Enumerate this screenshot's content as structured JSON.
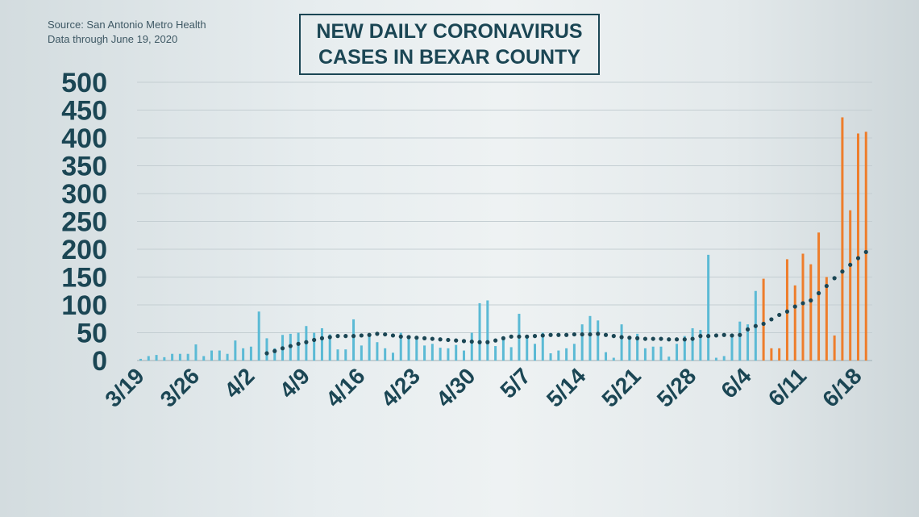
{
  "source": {
    "line1": "Source: San Antonio Metro Health",
    "line2": "Data through June 19, 2020"
  },
  "title": {
    "line1": "NEW DAILY CORONAVIRUS",
    "line2": "CASES IN BEXAR COUNTY"
  },
  "colors": {
    "bar_early": "#5bbad5",
    "bar_recent": "#ee7d2b",
    "average_dots": "#1b4654",
    "axis_text": "#1b4654",
    "grid": "#c4ced2"
  },
  "chart_data": {
    "type": "bar",
    "title": "NEW DAILY CORONAVIRUS CASES IN BEXAR COUNTY",
    "xlabel": "",
    "ylabel": "",
    "ylim": [
      0,
      500
    ],
    "yticks": [
      0,
      50,
      100,
      150,
      200,
      250,
      300,
      350,
      400,
      450,
      500
    ],
    "grid": true,
    "xtick_labels": [
      {
        "date": "3/19",
        "index": 0
      },
      {
        "date": "3/26",
        "index": 7
      },
      {
        "date": "4/2",
        "index": 14
      },
      {
        "date": "4/9",
        "index": 21
      },
      {
        "date": "4/16",
        "index": 28
      },
      {
        "date": "4/23",
        "index": 35
      },
      {
        "date": "4/30",
        "index": 42
      },
      {
        "date": "5/7",
        "index": 49
      },
      {
        "date": "5/14",
        "index": 56
      },
      {
        "date": "5/21",
        "index": 63
      },
      {
        "date": "5/28",
        "index": 70
      },
      {
        "date": "6/4",
        "index": 77
      },
      {
        "date": "6/11",
        "index": 84
      },
      {
        "date": "6/18",
        "index": 91
      }
    ],
    "start_date": "3/19",
    "end_date": "6/19",
    "highlight_from_date": "6/6",
    "series": [
      {
        "type": "bar",
        "values": [
          3,
          8,
          10,
          6,
          12,
          12,
          12,
          29,
          8,
          18,
          18,
          12,
          36,
          22,
          25,
          88,
          40,
          22,
          46,
          48,
          50,
          62,
          50,
          58,
          47,
          20,
          20,
          74,
          27,
          44,
          33,
          22,
          14,
          50,
          45,
          44,
          27,
          30,
          23,
          22,
          28,
          18,
          50,
          103,
          108,
          26,
          38,
          24,
          84,
          44,
          30,
          50,
          13,
          18,
          22,
          30,
          65,
          80,
          72,
          15,
          5,
          65,
          42,
          48,
          22,
          25,
          25,
          7,
          30,
          44,
          58,
          55,
          190,
          5,
          8,
          45,
          70,
          65,
          125,
          147,
          22,
          22,
          182,
          135,
          192,
          173,
          230,
          150,
          45,
          437,
          270,
          408,
          411
        ],
        "highlight_values": [
          147,
          22,
          22,
          182,
          135,
          192,
          173,
          230,
          150,
          45,
          437,
          270,
          408,
          411
        ]
      },
      {
        "type": "dots",
        "values": [
          13,
          17,
          22,
          26,
          30,
          33,
          37,
          40,
          42,
          44,
          44,
          44,
          45,
          46,
          48,
          47,
          45,
          43,
          42,
          41,
          40,
          39,
          38,
          37,
          36,
          35,
          34,
          33,
          33,
          36,
          40,
          43,
          43,
          43,
          44,
          45,
          46,
          46,
          46,
          47,
          47,
          47,
          48,
          46,
          44,
          42,
          41,
          40,
          39,
          39,
          39,
          38,
          38,
          38,
          39,
          44,
          44,
          45,
          46,
          45,
          46,
          56,
          62,
          66,
          74,
          82,
          88,
          97,
          103,
          108,
          121,
          134,
          148,
          160,
          172,
          184,
          195
        ]
      }
    ],
    "dots_start_index": 16
  }
}
